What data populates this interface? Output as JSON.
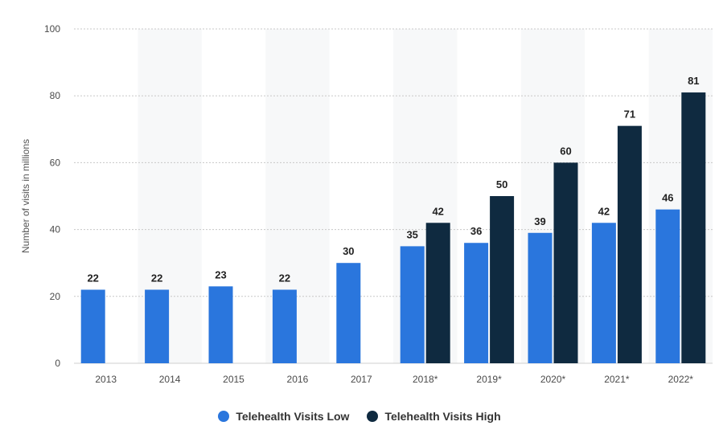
{
  "chart_data": {
    "type": "bar",
    "categories": [
      "2013",
      "2014",
      "2015",
      "2016",
      "2017",
      "2018*",
      "2019*",
      "2020*",
      "2021*",
      "2022*"
    ],
    "series": [
      {
        "name": "Telehealth Visits Low",
        "color": "#2a76dd",
        "values": [
          22,
          22,
          23,
          22,
          30,
          35,
          36,
          39,
          42,
          46
        ]
      },
      {
        "name": "Telehealth Visits High",
        "color": "#0f2a40",
        "values": [
          null,
          null,
          null,
          null,
          null,
          42,
          50,
          60,
          71,
          81
        ]
      }
    ],
    "ylabel": "Number of visits in millions",
    "ylim": [
      0,
      100
    ],
    "yticks": [
      0,
      20,
      40,
      60,
      80,
      100
    ],
    "grid": true,
    "legend_position": "bottom",
    "data_labels": true
  }
}
